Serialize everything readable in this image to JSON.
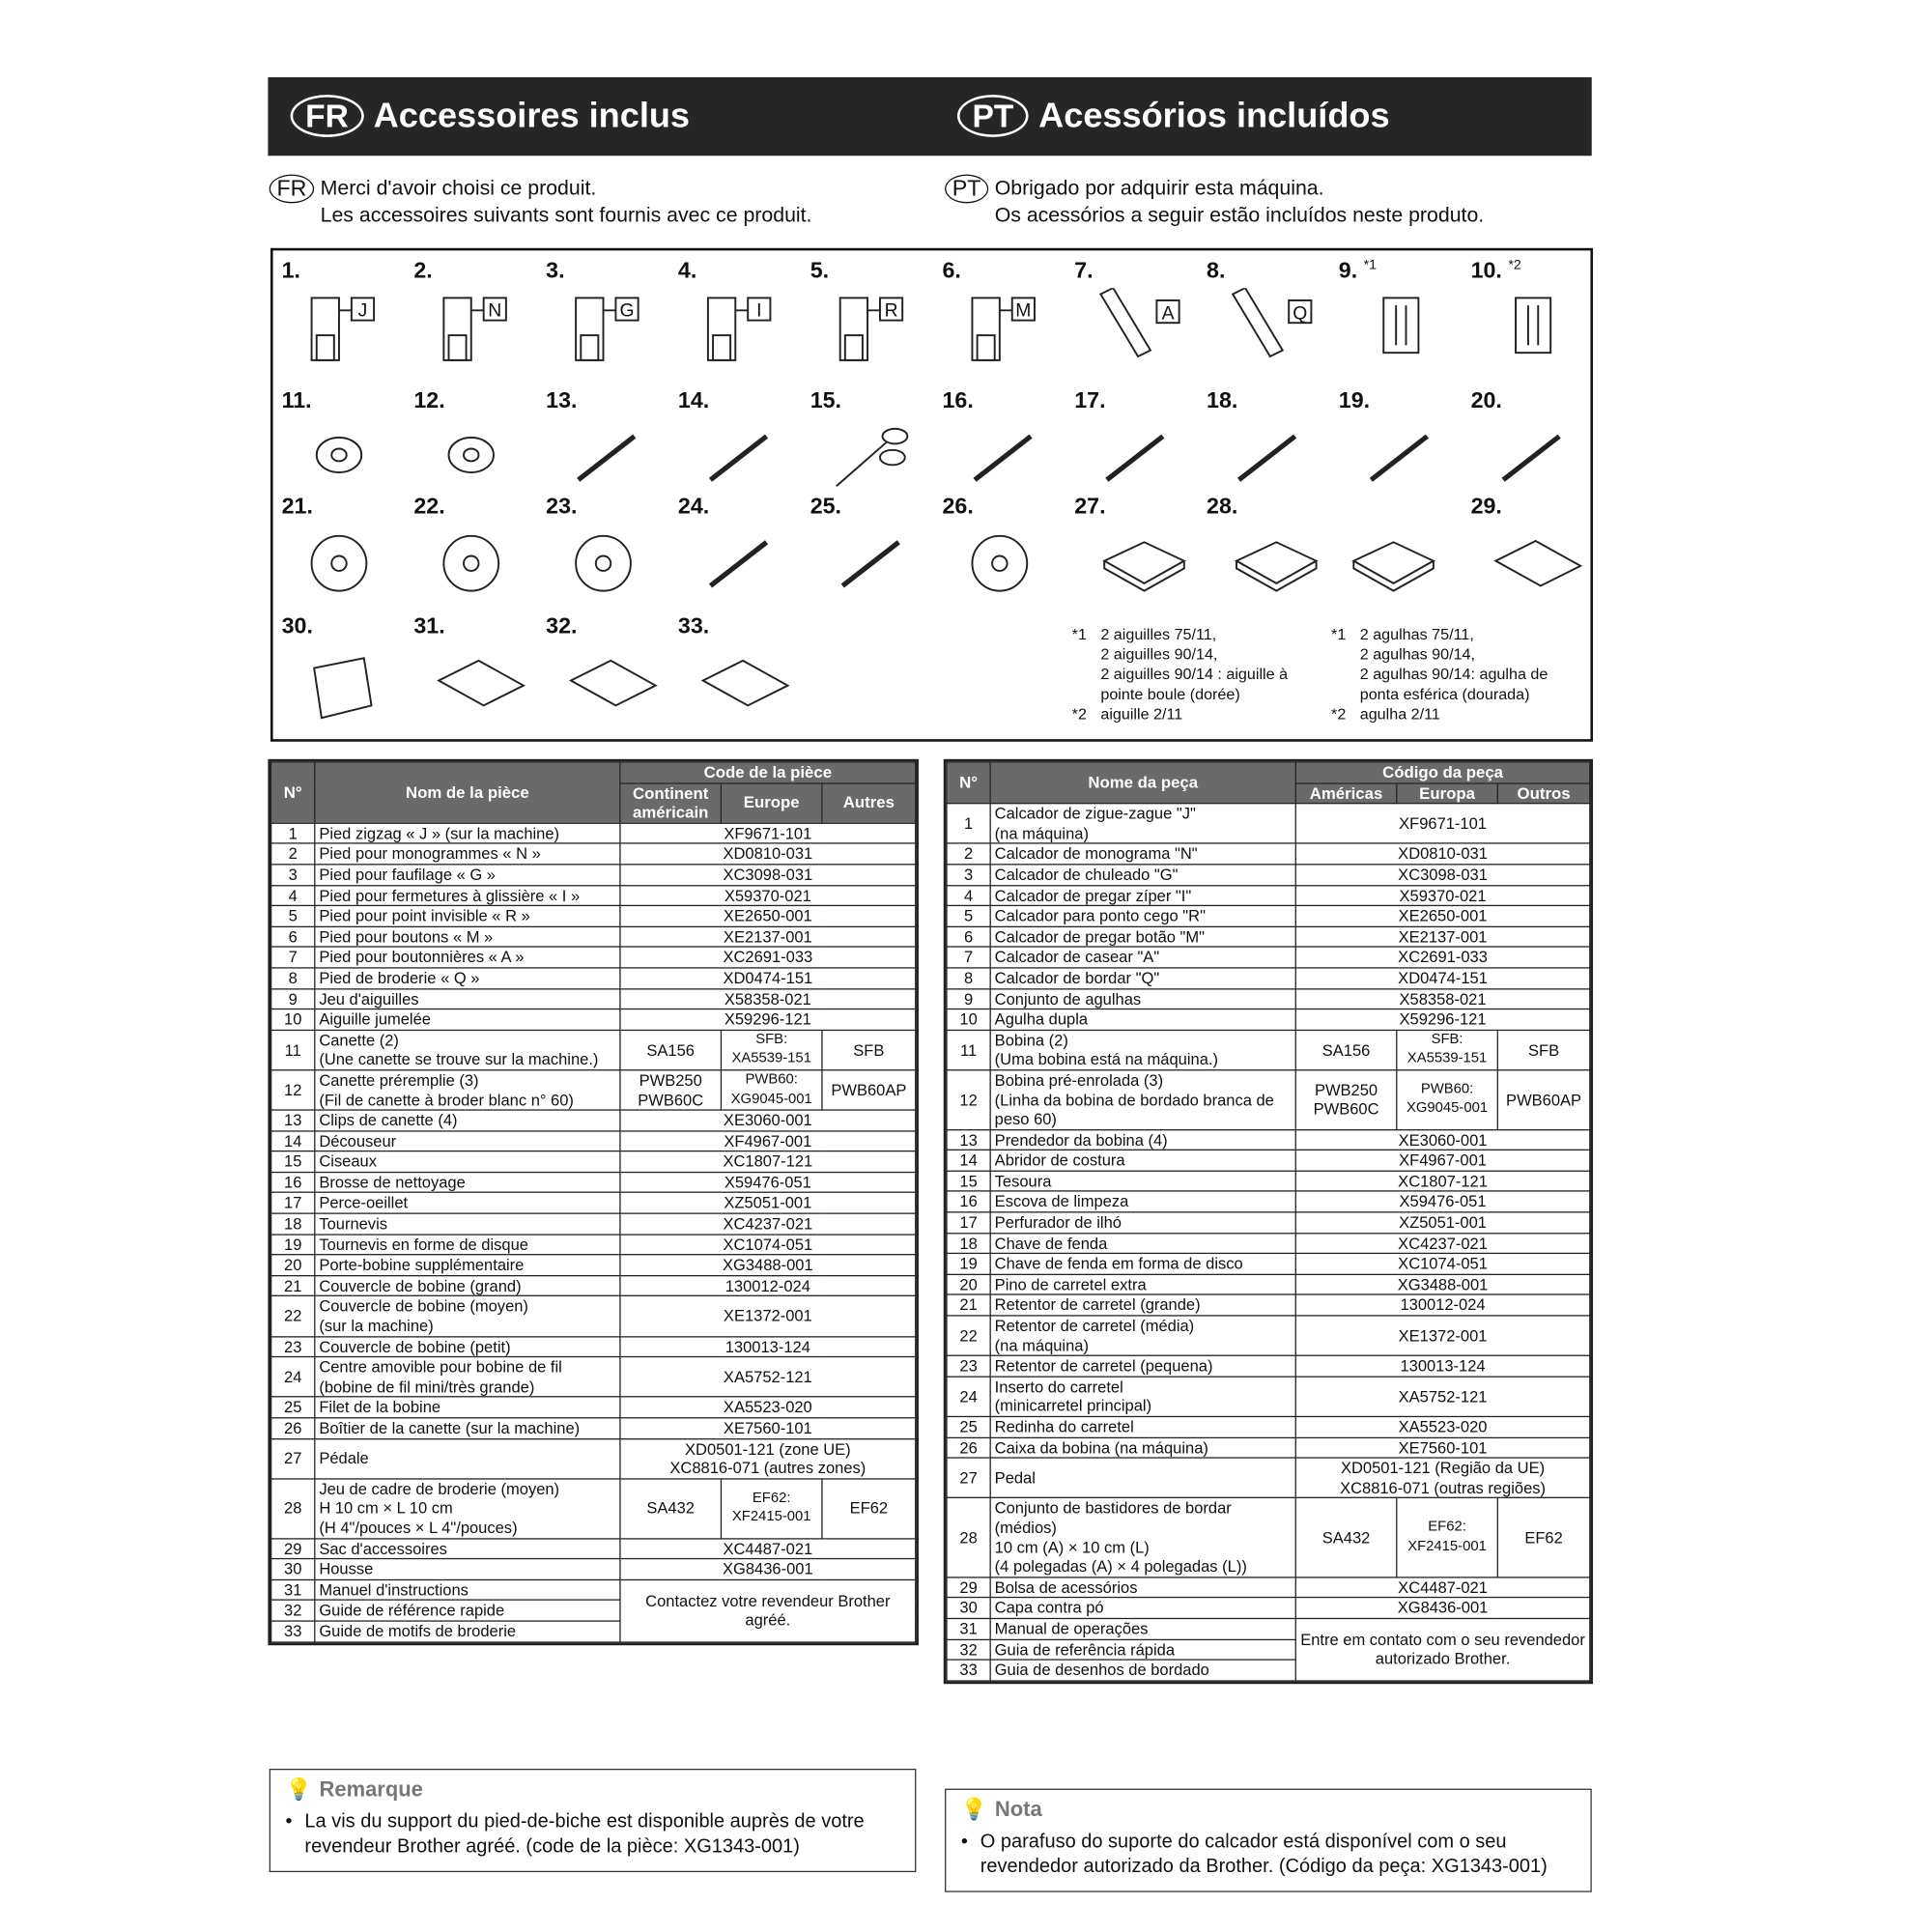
{
  "header": {
    "fr_badge": "FR",
    "fr_title": "Accessoires inclus",
    "pt_badge": "PT",
    "pt_title": "Acessórios incluídos"
  },
  "intro": {
    "fr_badge": "FR",
    "fr_line1": "Merci d'avoir choisi ce produit.",
    "fr_line2": "Les accessoires suivants sont fournis avec ce produit.",
    "pt_badge": "PT",
    "pt_line1": "Obrigado por adquirir esta máquina.",
    "pt_line2": "Os acessórios a seguir estão incluídos neste produto."
  },
  "items": [
    {
      "n": "1.",
      "letter": "J",
      "icon": "presser-foot"
    },
    {
      "n": "2.",
      "letter": "N",
      "icon": "presser-foot"
    },
    {
      "n": "3.",
      "letter": "G",
      "icon": "presser-foot"
    },
    {
      "n": "4.",
      "letter": "I",
      "icon": "presser-foot"
    },
    {
      "n": "5.",
      "letter": "R",
      "icon": "presser-foot"
    },
    {
      "n": "6.",
      "letter": "M",
      "icon": "presser-foot"
    },
    {
      "n": "7.",
      "letter": "A",
      "icon": "buttonhole-foot"
    },
    {
      "n": "8.",
      "letter": "Q",
      "icon": "embroidery-foot"
    },
    {
      "n": "9.",
      "sup": "*1",
      "icon": "needle-set"
    },
    {
      "n": "10.",
      "sup": "*2",
      "icon": "twin-needle"
    },
    {
      "n": "11.",
      "icon": "bobbin"
    },
    {
      "n": "12.",
      "icon": "prewound-bobbin"
    },
    {
      "n": "13.",
      "icon": "bobbin-clip"
    },
    {
      "n": "14.",
      "icon": "seam-ripper"
    },
    {
      "n": "15.",
      "icon": "scissors"
    },
    {
      "n": "16.",
      "icon": "cleaning-brush"
    },
    {
      "n": "17.",
      "icon": "eyelet-punch"
    },
    {
      "n": "18.",
      "icon": "screwdriver"
    },
    {
      "n": "19.",
      "icon": "disc-screwdriver"
    },
    {
      "n": "20.",
      "icon": "spool-pin"
    },
    {
      "n": "21.",
      "icon": "spool-cap-large"
    },
    {
      "n": "22.",
      "icon": "spool-cap-medium"
    },
    {
      "n": "23.",
      "icon": "spool-cap-small"
    },
    {
      "n": "24.",
      "icon": "spool-insert"
    },
    {
      "n": "25.",
      "icon": "spool-net"
    },
    {
      "n": "26.",
      "icon": "bobbin-case"
    },
    {
      "n": "27.",
      "icon": "foot-controller"
    },
    {
      "n": "28.",
      "icon": "embroidery-frame"
    },
    {
      "n": "",
      "icon": "embroidery-sheet"
    },
    {
      "n": "29.",
      "icon": "accessory-bag"
    },
    {
      "n": "30.",
      "icon": "dust-cover"
    },
    {
      "n": "31.",
      "icon": "manual"
    },
    {
      "n": "32.",
      "icon": "manual"
    },
    {
      "n": "33.",
      "icon": "manual"
    }
  ],
  "footnotes": {
    "fr": [
      {
        "mark": "*1",
        "text": "2 aiguilles 75/11,"
      },
      {
        "mark": "",
        "text": "2 aiguilles 90/14,"
      },
      {
        "mark": "",
        "text": "2 aiguilles 90/14 : aiguille à"
      },
      {
        "mark": "",
        "text": "pointe boule (dorée)"
      },
      {
        "mark": "*2",
        "text": "aiguille 2/11"
      }
    ],
    "pt": [
      {
        "mark": "*1",
        "text": "2 agulhas 75/11,"
      },
      {
        "mark": "",
        "text": "2 agulhas 90/14,"
      },
      {
        "mark": "",
        "text": "2 agulhas 90/14: agulha de"
      },
      {
        "mark": "",
        "text": "ponta esférica (dourada)"
      },
      {
        "mark": "*2",
        "text": "agulha 2/11"
      }
    ]
  },
  "fr_table": {
    "headers": {
      "no": "N°",
      "name": "Nom de la pièce",
      "code": "Code de la pièce",
      "am": "Continent américain",
      "eu": "Europe",
      "other": "Autres"
    },
    "rows": [
      {
        "n": "1",
        "name": "Pied zigzag « J » (sur la machine)",
        "code": "XF9671-101"
      },
      {
        "n": "2",
        "name": "Pied pour monogrammes « N »",
        "code": "XD0810-031"
      },
      {
        "n": "3",
        "name": "Pied pour faufilage « G »",
        "code": "XC3098-031"
      },
      {
        "n": "4",
        "name": "Pied pour fermetures à glissière « I »",
        "code": "X59370-021"
      },
      {
        "n": "5",
        "name": "Pied pour point invisible « R »",
        "code": "XE2650-001"
      },
      {
        "n": "6",
        "name": "Pied pour boutons « M »",
        "code": "XE2137-001"
      },
      {
        "n": "7",
        "name": "Pied pour boutonnières « A »",
        "code": "XC2691-033"
      },
      {
        "n": "8",
        "name": "Pied de broderie « Q »",
        "code": "XD0474-151"
      },
      {
        "n": "9",
        "name": "Jeu d'aiguilles",
        "code": "X58358-021"
      },
      {
        "n": "10",
        "name": "Aiguille jumelée",
        "code": "X59296-121"
      },
      {
        "n": "11",
        "name": "Canette (2)\n(Une canette se trouve sur la machine.)",
        "am": "SA156",
        "eu": "SFB:\nXA5539-151",
        "other": "SFB"
      },
      {
        "n": "12",
        "name": "Canette préremplie (3)\n(Fil de canette à broder blanc n° 60)",
        "am": "PWB250\nPWB60C",
        "eu": "PWB60:\nXG9045-001",
        "other": "PWB60AP"
      },
      {
        "n": "13",
        "name": "Clips de canette (4)",
        "code": "XE3060-001"
      },
      {
        "n": "14",
        "name": "Découseur",
        "code": "XF4967-001"
      },
      {
        "n": "15",
        "name": "Ciseaux",
        "code": "XC1807-121"
      },
      {
        "n": "16",
        "name": "Brosse de nettoyage",
        "code": "X59476-051"
      },
      {
        "n": "17",
        "name": "Perce-oeillet",
        "code": "XZ5051-001"
      },
      {
        "n": "18",
        "name": "Tournevis",
        "code": "XC4237-021"
      },
      {
        "n": "19",
        "name": "Tournevis en forme de disque",
        "code": "XC1074-051"
      },
      {
        "n": "20",
        "name": "Porte-bobine supplémentaire",
        "code": "XG3488-001"
      },
      {
        "n": "21",
        "name": "Couvercle de bobine (grand)",
        "code": "130012-024"
      },
      {
        "n": "22",
        "name": "Couvercle de bobine (moyen)\n(sur la machine)",
        "code": "XE1372-001"
      },
      {
        "n": "23",
        "name": "Couvercle de bobine (petit)",
        "code": "130013-124"
      },
      {
        "n": "24",
        "name": "Centre amovible pour bobine de fil\n(bobine de fil mini/très grande)",
        "code": "XA5752-121"
      },
      {
        "n": "25",
        "name": "Filet de la bobine",
        "code": "XA5523-020"
      },
      {
        "n": "26",
        "name": "Boîtier de la canette (sur la machine)",
        "code": "XE7560-101"
      },
      {
        "n": "27",
        "name": "Pédale",
        "code": "XD0501-121 (zone UE)\nXC8816-071 (autres zones)"
      },
      {
        "n": "28",
        "name": "Jeu de cadre de broderie (moyen)\nH 10 cm × L 10 cm\n(H 4\"/pouces × L 4\"/pouces)",
        "am": "SA432",
        "eu": "EF62:\nXF2415-001",
        "other": "EF62"
      },
      {
        "n": "29",
        "name": "Sac d'accessoires",
        "code": "XC4487-021"
      },
      {
        "n": "30",
        "name": "Housse",
        "code": "XG8436-001"
      },
      {
        "n": "31",
        "name": "Manuel d'instructions",
        "merged": "Contactez votre revendeur Brother agréé.",
        "span": 3
      },
      {
        "n": "32",
        "name": "Guide de référence rapide"
      },
      {
        "n": "33",
        "name": "Guide de motifs de broderie"
      }
    ]
  },
  "pt_table": {
    "headers": {
      "no": "N°",
      "name": "Nome da peça",
      "code": "Código da peça",
      "am": "Américas",
      "eu": "Europa",
      "other": "Outros"
    },
    "rows": [
      {
        "n": "1",
        "name": "Calcador de zigue-zague \"J\"\n(na máquina)",
        "code": "XF9671-101"
      },
      {
        "n": "2",
        "name": "Calcador de monograma \"N\"",
        "code": "XD0810-031"
      },
      {
        "n": "3",
        "name": "Calcador de chuleado \"G\"",
        "code": "XC3098-031"
      },
      {
        "n": "4",
        "name": "Calcador de pregar zíper \"I\"",
        "code": "X59370-021"
      },
      {
        "n": "5",
        "name": "Calcador para ponto cego \"R\"",
        "code": "XE2650-001"
      },
      {
        "n": "6",
        "name": "Calcador de pregar botão \"M\"",
        "code": "XE2137-001"
      },
      {
        "n": "7",
        "name": "Calcador de casear \"A\"",
        "code": "XC2691-033"
      },
      {
        "n": "8",
        "name": "Calcador de bordar \"Q\"",
        "code": "XD0474-151"
      },
      {
        "n": "9",
        "name": "Conjunto de agulhas",
        "code": "X58358-021"
      },
      {
        "n": "10",
        "name": "Agulha dupla",
        "code": "X59296-121"
      },
      {
        "n": "11",
        "name": "Bobina (2)\n(Uma bobina está na máquina.)",
        "am": "SA156",
        "eu": "SFB:\nXA5539-151",
        "other": "SFB"
      },
      {
        "n": "12",
        "name": "Bobina pré-enrolada (3)\n(Linha da bobina de bordado branca de peso 60)",
        "am": "PWB250\nPWB60C",
        "eu": "PWB60:\nXG9045-001",
        "other": "PWB60AP"
      },
      {
        "n": "13",
        "name": "Prendedor da bobina  (4)",
        "code": "XE3060-001"
      },
      {
        "n": "14",
        "name": "Abridor de costura",
        "code": "XF4967-001"
      },
      {
        "n": "15",
        "name": "Tesoura",
        "code": "XC1807-121"
      },
      {
        "n": "16",
        "name": "Escova de limpeza",
        "code": "X59476-051"
      },
      {
        "n": "17",
        "name": "Perfurador de ilhó",
        "code": "XZ5051-001"
      },
      {
        "n": "18",
        "name": "Chave de fenda",
        "code": "XC4237-021"
      },
      {
        "n": "19",
        "name": "Chave de fenda em forma de disco",
        "code": "XC1074-051"
      },
      {
        "n": "20",
        "name": "Pino de carretel extra",
        "code": "XG3488-001"
      },
      {
        "n": "21",
        "name": "Retentor de carretel (grande)",
        "code": "130012-024"
      },
      {
        "n": "22",
        "name": "Retentor de carretel (média)\n(na máquina)",
        "code": "XE1372-001"
      },
      {
        "n": "23",
        "name": "Retentor de carretel (pequena)",
        "code": "130013-124"
      },
      {
        "n": "24",
        "name": "Inserto do carretel\n(minicarretel principal)",
        "code": "XA5752-121"
      },
      {
        "n": "25",
        "name": "Redinha do carretel",
        "code": "XA5523-020"
      },
      {
        "n": "26",
        "name": "Caixa da bobina (na máquina)",
        "code": "XE7560-101"
      },
      {
        "n": "27",
        "name": "Pedal",
        "code": "XD0501-121 (Região da UE)\nXC8816-071 (outras regiões)"
      },
      {
        "n": "28",
        "name": "Conjunto de bastidores de bordar (médios)\n10 cm (A) × 10 cm (L)\n(4 polegadas (A) × 4 polegadas (L))",
        "am": "SA432",
        "eu": "EF62:\nXF2415-001",
        "other": "EF62"
      },
      {
        "n": "29",
        "name": "Bolsa de acessórios",
        "code": "XC4487-021"
      },
      {
        "n": "30",
        "name": "Capa contra pó",
        "code": "XG8436-001"
      },
      {
        "n": "31",
        "name": "Manual de operações",
        "merged": "Entre em contato com o seu revendedor autorizado Brother.",
        "span": 3
      },
      {
        "n": "32",
        "name": "Guia de referência rápida"
      },
      {
        "n": "33",
        "name": "Guia de desenhos de bordado"
      }
    ]
  },
  "notes": {
    "fr_title": "Remarque",
    "fr_text": "La vis du support du pied-de-biche est disponible auprès de votre revendeur Brother agréé. (code de la pièce: XG1343-001)",
    "pt_title": "Nota",
    "pt_text": "O parafuso do suporte do calcador está disponível com o seu revendedor autorizado da Brother. (Código da peça: XG1343-001)",
    "bullet": "•"
  }
}
